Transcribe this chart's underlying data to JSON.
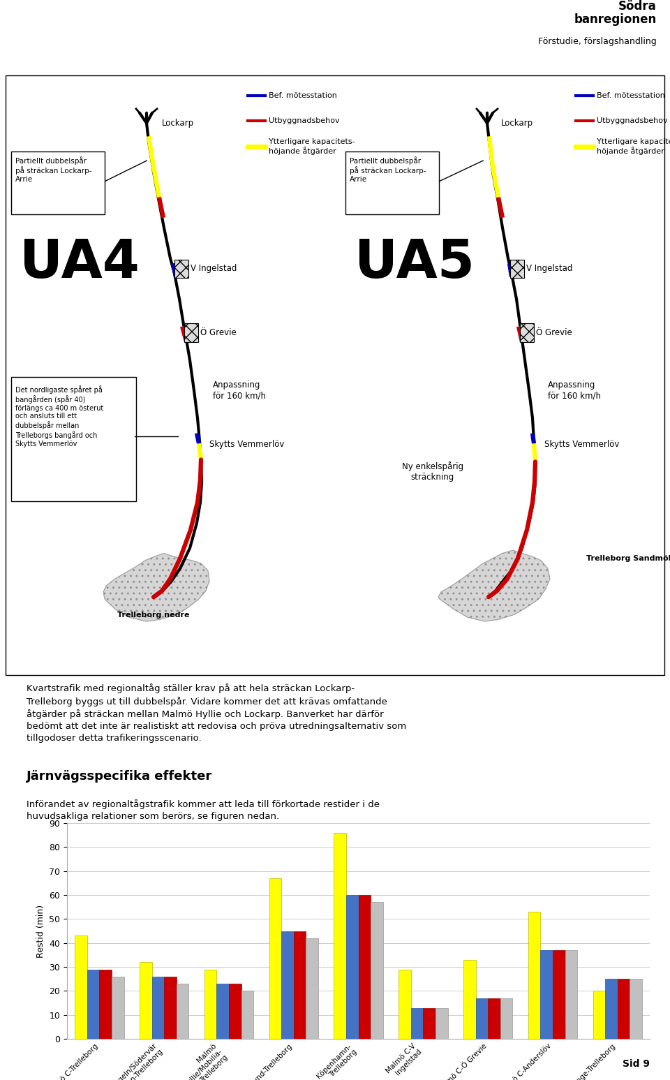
{
  "title_line1": "Södra",
  "title_line2": "banregionen",
  "title_line3": "Förstudie, förslagshandling",
  "body_text1": "Kvartstrafik med regionaltåg ställer krav på att hela sträckan Lockarp-\nTrelleborg byggs ut till dubbelspår. Vidare kommer det att krävas omfattande\nåtgärder på sträckan mellan Malmö Hyllie och Lockarp. Banverket har därför\nbedömt att det inte är realistiskt att redovisa och pröva utredningsalternativ som\ntillgodoser detta trafikeringsscenario.",
  "section_title": "Järnvägsspecifika effekter",
  "section_body": "Införandet av regionaltågstrafik kommer att leda till förkortade restider i de\nhuvudsakliga relationer som berörs, se figuren nedan.",
  "chart_categories": [
    "Malmö C-Trelleborg",
    "Triangeln/Södervär\nn-Trelleborg",
    "Malmö\nHyllie/Mobilia-\nTrelleborg",
    "Lund-Trelleborg",
    "Köpenhamn-\nTrelleborg",
    "Malmö C-V\nIngelstad",
    "Malmö C-Ö Grevie",
    "Malmö C-Anderslöv",
    "Vellinge-Trelleborg"
  ],
  "chart_ylabel": "Restid (min)",
  "chart_ylim": [
    0,
    90
  ],
  "chart_yticks": [
    0,
    10,
    20,
    30,
    40,
    50,
    60,
    70,
    80,
    90
  ],
  "ja_buss": [
    43,
    32,
    29,
    67,
    86,
    29,
    33,
    53,
    20
  ],
  "ua1": [
    29,
    26,
    23,
    45,
    60,
    13,
    17,
    37,
    25
  ],
  "ua2ua4": [
    29,
    26,
    23,
    45,
    60,
    13,
    17,
    37,
    25
  ],
  "ua3ua5": [
    26,
    23,
    20,
    42,
    57,
    13,
    17,
    37,
    25
  ],
  "color_ja_buss": "#ffff00",
  "color_ua1": "#4472c4",
  "color_ua2ua4": "#cc0000",
  "color_ua3ua5": "#c0c0c0",
  "sid_text": "Sid 9",
  "bg_color": "#ffffff",
  "blue": "#0000bb",
  "red": "#cc0000",
  "yellow": "#ffff00",
  "black": "#000000"
}
